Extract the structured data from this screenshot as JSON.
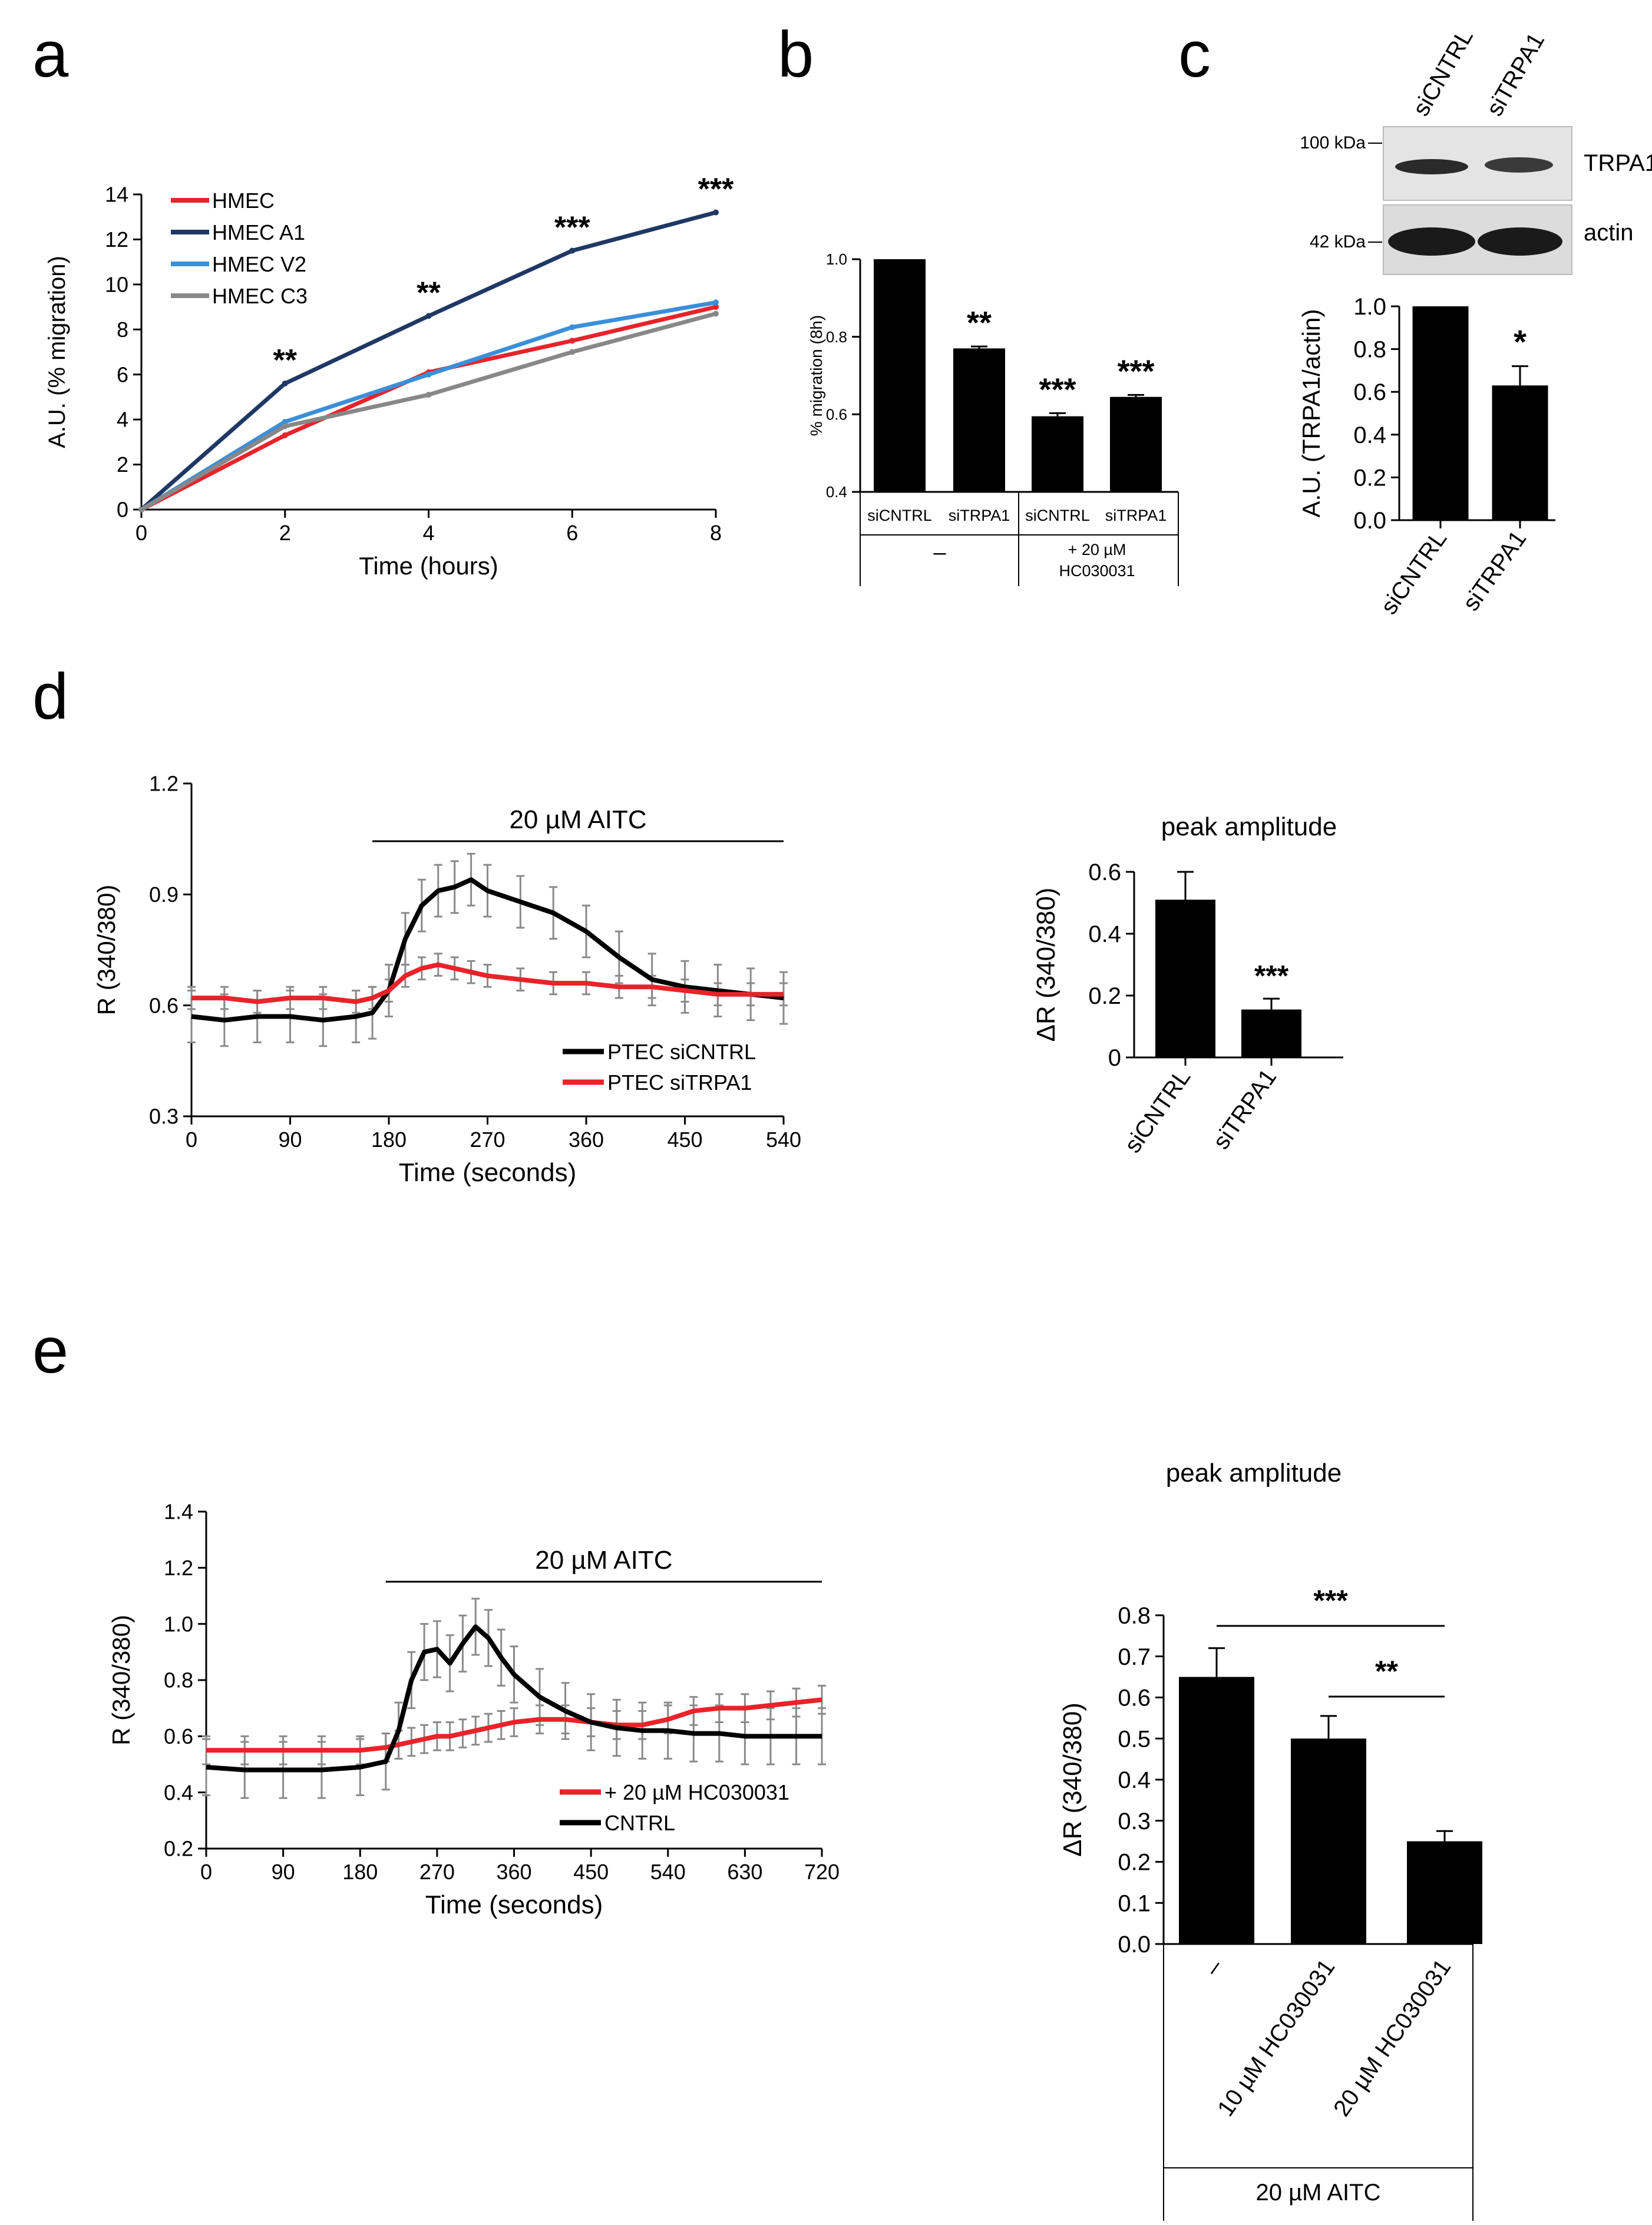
{
  "panel_letters": {
    "a": "a",
    "b": "b",
    "c": "c",
    "d": "d",
    "e": "e"
  },
  "chart_data": [
    {
      "id": "a",
      "type": "line",
      "title": "",
      "xlabel": "Time (hours)",
      "ylabel": "A.U. (% migration)",
      "xlim": [
        0,
        8
      ],
      "ylim": [
        0,
        14
      ],
      "x_ticks": [
        0,
        2,
        4,
        6,
        8
      ],
      "y_ticks": [
        0,
        2,
        4,
        6,
        8,
        10,
        12,
        14
      ],
      "x": [
        0,
        2,
        4,
        6,
        8
      ],
      "series": [
        {
          "name": "HMEC",
          "color": "#e8232a",
          "values": [
            0,
            3.3,
            6.1,
            7.5,
            9.0
          ]
        },
        {
          "name": "HMEC A1",
          "color": "#1f3864",
          "values": [
            0,
            5.6,
            8.6,
            11.5,
            13.2
          ]
        },
        {
          "name": "HMEC V2",
          "color": "#3b8fd9",
          "values": [
            0,
            3.9,
            6.0,
            8.1,
            9.2
          ]
        },
        {
          "name": "HMEC C3",
          "color": "#888888",
          "values": [
            0,
            3.7,
            5.1,
            7.0,
            8.7
          ]
        }
      ],
      "annotations": [
        {
          "x": 2,
          "y": 5.6,
          "text": "**"
        },
        {
          "x": 4,
          "y": 8.6,
          "text": "**"
        },
        {
          "x": 6,
          "y": 11.5,
          "text": "***"
        },
        {
          "x": 8,
          "y": 13.2,
          "text": "***"
        }
      ],
      "legend_position": "top-left",
      "grid": false
    },
    {
      "id": "b",
      "type": "bar",
      "ylabel": "% migration (8h)",
      "ylim": [
        0.4,
        1.0
      ],
      "y_ticks": [
        "0.4",
        "0.6",
        "0.8",
        "1.0"
      ],
      "categories": [
        "siCNTRL",
        "siTRPA1",
        "siCNTRL",
        "siTRPA1"
      ],
      "values": [
        1.0,
        0.77,
        0.595,
        0.645
      ],
      "errors": [
        0,
        0.005,
        0.008,
        0.005
      ],
      "significance": [
        "",
        "**",
        "***",
        "***"
      ],
      "groups": [
        {
          "label": "–",
          "span": [
            0,
            1
          ]
        },
        {
          "label": "+ 20 µM",
          "label2": "HC030031",
          "span": [
            2,
            3
          ]
        }
      ]
    },
    {
      "id": "c",
      "type": "bar",
      "ylabel": "A.U. (TRPA1/actin)",
      "ylim": [
        0,
        1.0
      ],
      "y_ticks": [
        "0.0",
        "0.2",
        "0.4",
        "0.6",
        "0.8",
        "1.0"
      ],
      "categories": [
        "siCNTRL",
        "siTRPA1"
      ],
      "values": [
        1.0,
        0.63
      ],
      "errors": [
        0,
        0.09
      ],
      "significance": [
        "",
        "*"
      ],
      "blot": {
        "lanes": [
          "siCNTRL",
          "siTRPA1"
        ],
        "markers": [
          "100 kDa",
          "42 kDa"
        ],
        "bands": [
          "TRPA1",
          "actin"
        ]
      }
    },
    {
      "id": "d-trace",
      "type": "line",
      "xlabel": "Time (seconds)",
      "ylabel": "R (340/380)",
      "xlim": [
        0,
        540
      ],
      "ylim": [
        0.3,
        1.2
      ],
      "x_ticks": [
        0,
        90,
        180,
        270,
        360,
        450,
        540
      ],
      "y_ticks": [
        "0.3",
        "0.6",
        "0.9",
        "1.2"
      ],
      "stimulus": {
        "label": "20 µM AITC",
        "start": 165,
        "end": 540
      },
      "x": [
        0,
        30,
        60,
        90,
        120,
        150,
        165,
        180,
        195,
        210,
        225,
        240,
        255,
        270,
        300,
        330,
        360,
        390,
        420,
        450,
        480,
        510,
        540
      ],
      "series": [
        {
          "name": "PTEC siCNTRL",
          "color": "#000000",
          "values": [
            0.57,
            0.56,
            0.57,
            0.57,
            0.56,
            0.57,
            0.58,
            0.64,
            0.78,
            0.87,
            0.91,
            0.92,
            0.94,
            0.91,
            0.88,
            0.85,
            0.8,
            0.73,
            0.67,
            0.65,
            0.64,
            0.63,
            0.62
          ],
          "error": 0.07
        },
        {
          "name": "PTEC siTRPA1",
          "color": "#e8232a",
          "values": [
            0.62,
            0.62,
            0.61,
            0.62,
            0.62,
            0.61,
            0.62,
            0.64,
            0.68,
            0.7,
            0.71,
            0.7,
            0.69,
            0.68,
            0.67,
            0.66,
            0.66,
            0.65,
            0.65,
            0.64,
            0.63,
            0.63,
            0.63
          ],
          "error": 0.03
        }
      ],
      "legend_position": "bottom-right"
    },
    {
      "id": "d-peak",
      "type": "bar",
      "title": "peak amplitude",
      "ylabel": "ΔR (340/380)",
      "ylim": [
        0,
        0.6
      ],
      "y_ticks": [
        "0",
        "0.2",
        "0.4",
        "0.6"
      ],
      "categories": [
        "siCNTRL",
        "siTRPA1"
      ],
      "values": [
        0.51,
        0.155
      ],
      "errors": [
        0.09,
        0.035
      ],
      "significance": [
        "",
        "***"
      ]
    },
    {
      "id": "e-trace",
      "type": "line",
      "xlabel": "Time (seconds)",
      "ylabel": "R (340/380)",
      "xlim": [
        0,
        720
      ],
      "ylim": [
        0.2,
        1.4
      ],
      "x_ticks": [
        0,
        90,
        180,
        270,
        360,
        450,
        540,
        630,
        720
      ],
      "y_ticks": [
        "0.2",
        "0.4",
        "0.6",
        "0.8",
        "1.0",
        "1.2",
        "1.4"
      ],
      "stimulus": {
        "label": "20 µM AITC",
        "start": 210,
        "end": 720
      },
      "x": [
        0,
        45,
        90,
        135,
        180,
        210,
        225,
        240,
        255,
        270,
        285,
        300,
        315,
        330,
        345,
        360,
        390,
        420,
        450,
        480,
        510,
        540,
        570,
        600,
        630,
        660,
        690,
        720
      ],
      "series": [
        {
          "name": "+ 20 µM HC030031",
          "color": "#e8232a",
          "values": [
            0.55,
            0.55,
            0.55,
            0.55,
            0.55,
            0.56,
            0.57,
            0.58,
            0.59,
            0.6,
            0.6,
            0.61,
            0.62,
            0.63,
            0.64,
            0.65,
            0.66,
            0.66,
            0.65,
            0.64,
            0.64,
            0.66,
            0.69,
            0.7,
            0.7,
            0.71,
            0.72,
            0.73
          ],
          "error": 0.05
        },
        {
          "name": "CNTRL",
          "color": "#000000",
          "values": [
            0.49,
            0.48,
            0.48,
            0.48,
            0.49,
            0.51,
            0.62,
            0.8,
            0.9,
            0.91,
            0.86,
            0.93,
            0.99,
            0.95,
            0.88,
            0.82,
            0.74,
            0.69,
            0.65,
            0.63,
            0.62,
            0.62,
            0.61,
            0.61,
            0.6,
            0.6,
            0.6,
            0.6
          ],
          "error": 0.1
        }
      ],
      "legend_position": "bottom-right"
    },
    {
      "id": "e-peak",
      "type": "bar",
      "title": "peak amplitude",
      "ylabel": "ΔR (340/380)",
      "ylim": [
        0,
        0.8
      ],
      "y_ticks": [
        "0.0",
        "0.1",
        "0.2",
        "0.3",
        "0.4",
        "0.5",
        "0.6",
        "0.7",
        "0.8"
      ],
      "categories": [
        "–",
        "10 µM HC030031",
        "20 µM HC030031"
      ],
      "values": [
        0.65,
        0.5,
        0.25
      ],
      "errors": [
        0.07,
        0.055,
        0.025
      ],
      "group_label": "20 µM AITC",
      "brackets": [
        {
          "from": 0,
          "to": 2,
          "text": "***"
        },
        {
          "from": 1,
          "to": 2,
          "text": "**"
        }
      ]
    }
  ]
}
